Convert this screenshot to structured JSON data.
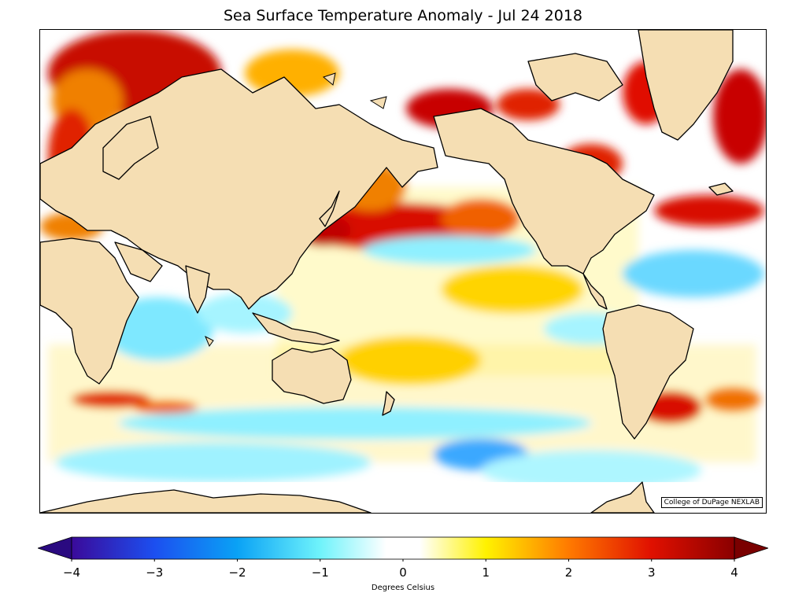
{
  "title": "Sea Surface Temperature Anomaly - Jul 24 2018",
  "credit": "College of DuPage NEXLAB",
  "colorbar": {
    "label": "Degrees Celsius",
    "min": -4,
    "max": 4,
    "ticks": [
      "−4",
      "−3",
      "−2",
      "−1",
      "0",
      "1",
      "2",
      "3",
      "4"
    ],
    "tick_values": [
      -4,
      -3,
      -2,
      -1,
      0,
      1,
      2,
      3,
      4
    ],
    "stops": [
      {
        "v": -4,
        "color": "#3a0a9a"
      },
      {
        "v": -3,
        "color": "#1c4ff0"
      },
      {
        "v": -2,
        "color": "#0aa2f5"
      },
      {
        "v": -1,
        "color": "#6ff3fb"
      },
      {
        "v": -0.2,
        "color": "#ffffff"
      },
      {
        "v": 0.2,
        "color": "#ffffff"
      },
      {
        "v": 1,
        "color": "#fff200"
      },
      {
        "v": 2,
        "color": "#ff7a00"
      },
      {
        "v": 3,
        "color": "#e01000"
      },
      {
        "v": 4,
        "color": "#8a0000"
      }
    ]
  },
  "map": {
    "land_color": "#f5deb3",
    "ocean_default_color": "#ffffff",
    "coastline_color": "#000000"
  }
}
